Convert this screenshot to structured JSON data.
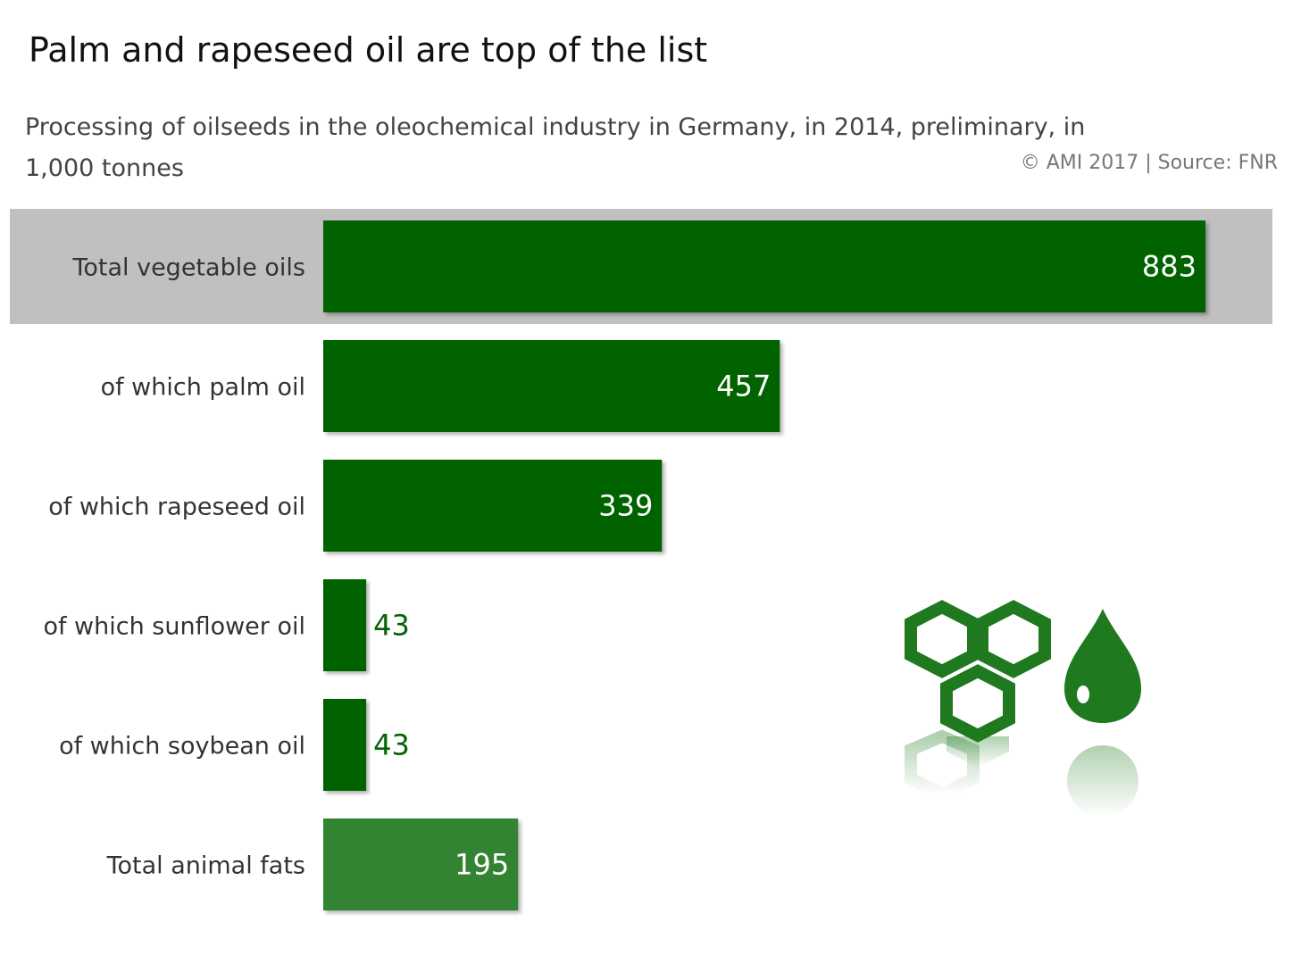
{
  "header": {
    "title": "Palm and rapeseed oil are top of the list",
    "subtitle": "Processing of oilseeds in the oleochemical industry in Germany, in 2014, preliminary, in 1,000 tonnes",
    "source": "© AMI 2017 | Source: FNR"
  },
  "colors": {
    "bar": "#026402",
    "bar_animal": "#338433",
    "highlight_band": "#c0c0c0",
    "value_inside": "#ffffff",
    "value_outside": "#026402",
    "icon": "#1f7a1f"
  },
  "icons": {
    "molecule": "hexagon-molecule-icon",
    "drop": "oil-drop-icon"
  },
  "chart_data": {
    "type": "bar",
    "orientation": "horizontal",
    "categories": [
      "Total vegetable oils",
      "of which palm oil",
      "of which rapeseed oil",
      "of which sunflower oil",
      "of which soybean oil",
      "Total animal fats"
    ],
    "values": [
      883,
      457,
      339,
      43,
      43,
      195
    ],
    "highlighted_category": "Total vegetable oils",
    "xlim": [
      0,
      883
    ],
    "grid": false,
    "legend": "none"
  }
}
